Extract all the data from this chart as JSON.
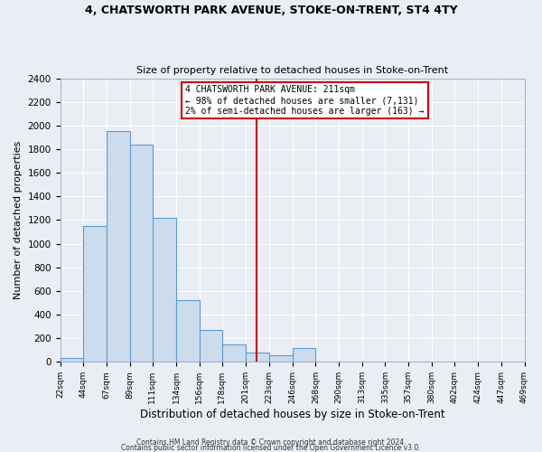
{
  "title1": "4, CHATSWORTH PARK AVENUE, STOKE-ON-TRENT, ST4 4TY",
  "title2": "Size of property relative to detached houses in Stoke-on-Trent",
  "xlabel": "Distribution of detached houses by size in Stoke-on-Trent",
  "ylabel": "Number of detached properties",
  "bin_labels": [
    "22sqm",
    "44sqm",
    "67sqm",
    "89sqm",
    "111sqm",
    "134sqm",
    "156sqm",
    "178sqm",
    "201sqm",
    "223sqm",
    "246sqm",
    "268sqm",
    "290sqm",
    "313sqm",
    "335sqm",
    "357sqm",
    "380sqm",
    "402sqm",
    "424sqm",
    "447sqm",
    "469sqm"
  ],
  "bin_edges": [
    22,
    44,
    67,
    89,
    111,
    134,
    156,
    178,
    201,
    223,
    246,
    268,
    290,
    313,
    335,
    357,
    380,
    402,
    424,
    447,
    469
  ],
  "bar_heights": [
    30,
    1150,
    1950,
    1840,
    1220,
    520,
    270,
    150,
    80,
    55,
    120,
    5,
    5,
    5,
    5,
    5,
    5,
    5,
    5,
    5,
    0
  ],
  "bar_color": "#ccdcec",
  "bar_edge_color": "#5b9bd5",
  "vline_x": 211,
  "vline_color": "#cc0000",
  "annotation_title": "4 CHATSWORTH PARK AVENUE: 211sqm",
  "annotation_line1": "← 98% of detached houses are smaller (7,131)",
  "annotation_line2": "2% of semi-detached houses are larger (163) →",
  "annotation_box_color": "white",
  "annotation_box_edge_color": "#cc0000",
  "ylim": [
    0,
    2400
  ],
  "yticks": [
    0,
    200,
    400,
    600,
    800,
    1000,
    1200,
    1400,
    1600,
    1800,
    2000,
    2200,
    2400
  ],
  "bg_color": "#e8eef4",
  "grid_color": "#ffffff",
  "footer1": "Contains HM Land Registry data © Crown copyright and database right 2024.",
  "footer2": "Contains public sector information licensed under the Open Government Licence v3.0."
}
